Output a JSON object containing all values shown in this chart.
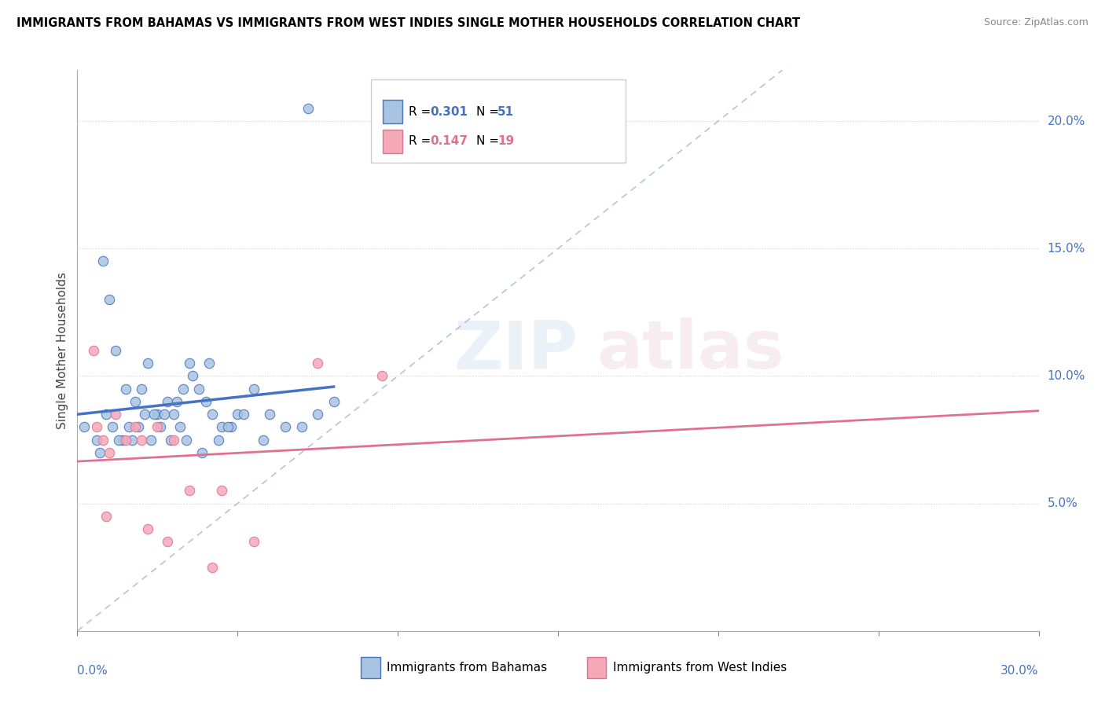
{
  "title": "IMMIGRANTS FROM BAHAMAS VS IMMIGRANTS FROM WEST INDIES SINGLE MOTHER HOUSEHOLDS CORRELATION CHART",
  "source": "Source: ZipAtlas.com",
  "ylabel": "Single Mother Households",
  "legend_r1": "0.301",
  "legend_n1": "51",
  "legend_r2": "0.147",
  "legend_n2": "19",
  "blue_color": "#a8c4e0",
  "pink_color": "#f4a8b8",
  "blue_line_color": "#4472c4",
  "pink_line_color": "#e07090",
  "dashed_line_color": "#a0b8d0",
  "blue_scatter_x": [
    0.002,
    0.008,
    0.01,
    0.012,
    0.015,
    0.018,
    0.02,
    0.022,
    0.025,
    0.028,
    0.03,
    0.032,
    0.035,
    0.038,
    0.04,
    0.042,
    0.045,
    0.048,
    0.05,
    0.055,
    0.006,
    0.009,
    0.011,
    0.014,
    0.016,
    0.019,
    0.021,
    0.024,
    0.027,
    0.031,
    0.033,
    0.036,
    0.041,
    0.007,
    0.013,
    0.017,
    0.023,
    0.026,
    0.029,
    0.034,
    0.039,
    0.044,
    0.047,
    0.052,
    0.058,
    0.06,
    0.065,
    0.07,
    0.075,
    0.08,
    0.072
  ],
  "blue_scatter_y": [
    0.08,
    0.145,
    0.13,
    0.11,
    0.095,
    0.09,
    0.095,
    0.105,
    0.085,
    0.09,
    0.085,
    0.08,
    0.105,
    0.095,
    0.09,
    0.085,
    0.08,
    0.08,
    0.085,
    0.095,
    0.075,
    0.085,
    0.08,
    0.075,
    0.08,
    0.08,
    0.085,
    0.085,
    0.085,
    0.09,
    0.095,
    0.1,
    0.105,
    0.07,
    0.075,
    0.075,
    0.075,
    0.08,
    0.075,
    0.075,
    0.07,
    0.075,
    0.08,
    0.085,
    0.075,
    0.085,
    0.08,
    0.08,
    0.085,
    0.09,
    0.205
  ],
  "pink_scatter_x": [
    0.005,
    0.008,
    0.01,
    0.015,
    0.02,
    0.025,
    0.03,
    0.035,
    0.075,
    0.095,
    0.006,
    0.009,
    0.012,
    0.018,
    0.022,
    0.028,
    0.045,
    0.055,
    0.042
  ],
  "pink_scatter_y": [
    0.11,
    0.075,
    0.07,
    0.075,
    0.075,
    0.08,
    0.075,
    0.055,
    0.105,
    0.1,
    0.08,
    0.045,
    0.085,
    0.08,
    0.04,
    0.035,
    0.055,
    0.035,
    0.025
  ],
  "xlim_max": 0.3,
  "ylim_max": 0.22,
  "yticks": [
    0.05,
    0.1,
    0.15,
    0.2
  ],
  "ytick_labels": [
    "5.0%",
    "10.0%",
    "15.0%",
    "20.0%"
  ],
  "xtick_label_left": "0.0%",
  "xtick_label_right": "30.0%"
}
